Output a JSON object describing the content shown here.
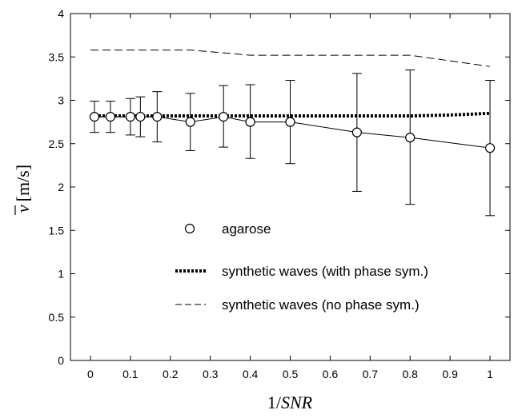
{
  "chart_data": {
    "type": "line",
    "xlabel_prefix": "1/",
    "xlabel_italic": "SNR",
    "ylabel_symbol": "v",
    "ylabel_unit": "[m/s]",
    "xlim": [
      -0.05,
      1.05
    ],
    "ylim": [
      0,
      4
    ],
    "xticks": [
      0,
      0.1,
      0.2,
      0.3,
      0.4,
      0.5,
      0.6,
      0.7,
      0.8,
      0.9,
      1
    ],
    "xtick_labels": [
      "0",
      "0.1",
      "0.2",
      "0.3",
      "0.4",
      "0.5",
      "0.6",
      "0.7",
      "0.8",
      "0.9",
      "1"
    ],
    "yticks": [
      0,
      0.5,
      1,
      1.5,
      2,
      2.5,
      3,
      3.5,
      4
    ],
    "ytick_labels": [
      "0",
      "0.5",
      "1",
      "1.5",
      "2",
      "2.5",
      "3",
      "3.5",
      "4"
    ],
    "grid": false,
    "legend_position": "lower-center",
    "series": [
      {
        "name": "agarose",
        "style": "circle-markers-solid-line-with-errorbars",
        "x": [
          0.01,
          0.05,
          0.1,
          0.125,
          0.167,
          0.25,
          0.333,
          0.4,
          0.5,
          0.667,
          0.8,
          1.0
        ],
        "y": [
          2.81,
          2.81,
          2.81,
          2.81,
          2.81,
          2.75,
          2.81,
          2.75,
          2.75,
          2.63,
          2.57,
          2.45
        ],
        "err_low": [
          2.63,
          2.63,
          2.6,
          2.58,
          2.52,
          2.42,
          2.46,
          2.33,
          2.27,
          1.95,
          1.8,
          1.67
        ],
        "err_high": [
          2.99,
          2.99,
          3.02,
          3.04,
          3.1,
          3.08,
          3.17,
          3.18,
          3.23,
          3.31,
          3.35,
          3.23
        ]
      },
      {
        "name": "synthetic waves (with phase sym.)",
        "style": "thick-dotted",
        "x": [
          0.0,
          0.1,
          0.2,
          0.3,
          0.4,
          0.5,
          0.6,
          0.7,
          0.8,
          0.9,
          1.0
        ],
        "y": [
          2.82,
          2.82,
          2.82,
          2.82,
          2.82,
          2.82,
          2.82,
          2.82,
          2.82,
          2.83,
          2.85
        ]
      },
      {
        "name": "synthetic waves (no phase sym.)",
        "style": "dashed",
        "x": [
          0.0,
          0.25,
          0.4,
          0.8,
          1.0
        ],
        "y": [
          3.58,
          3.58,
          3.52,
          3.52,
          3.39
        ]
      }
    ]
  },
  "legend": {
    "items": [
      {
        "label": "agarose"
      },
      {
        "label": "synthetic waves (with phase sym.)"
      },
      {
        "label": "synthetic waves (no phase sym.)"
      }
    ]
  }
}
